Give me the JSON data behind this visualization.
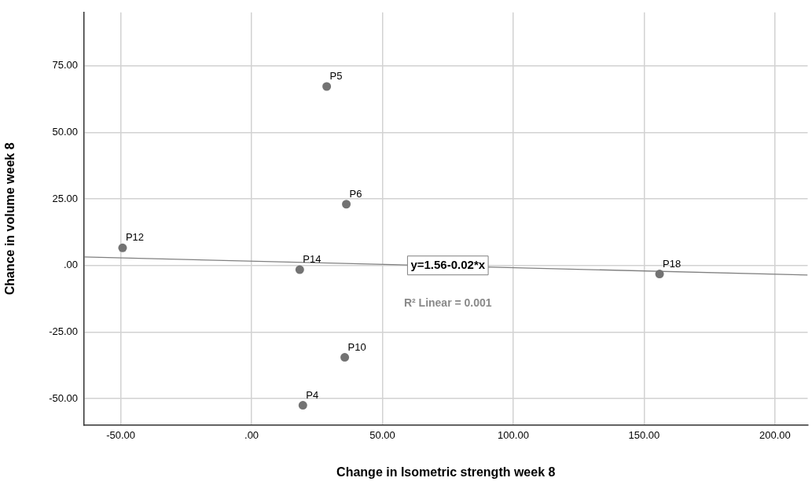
{
  "chart_data": {
    "type": "scatter",
    "xlabel": "Change in Isometric strength week 8",
    "ylabel": "Chance in volume week 8",
    "xlim": [
      -64,
      212.5
    ],
    "ylim": [
      -60,
      95
    ],
    "xticks": [
      {
        "value": -50,
        "label": "-50.00"
      },
      {
        "value": 0,
        "label": ".00"
      },
      {
        "value": 50,
        "label": "50.00"
      },
      {
        "value": 100,
        "label": "100.00"
      },
      {
        "value": 150,
        "label": "150.00"
      },
      {
        "value": 200,
        "label": "200.00"
      }
    ],
    "yticks": [
      {
        "value": -50,
        "label": "-50.00"
      },
      {
        "value": -25,
        "label": "-25.00"
      },
      {
        "value": 0,
        "label": ".00"
      },
      {
        "value": 25,
        "label": "25.00"
      },
      {
        "value": 50,
        "label": "50.00"
      },
      {
        "value": 75,
        "label": "75.00"
      }
    ],
    "grid": true,
    "series": [
      {
        "marker": "circle",
        "color": "#737373",
        "x": [
          28.7,
          36.2,
          -49.3,
          18.4,
          155.9,
          35.6,
          19.6
        ],
        "values": [
          67.2,
          23.0,
          6.6,
          -1.6,
          -3.2,
          -34.5,
          -52.5
        ],
        "value_labels": [
          "P5",
          "P6",
          "P12",
          "P14",
          "P18",
          "P10",
          "P4"
        ]
      },
      {
        "type": "line",
        "color": "#808080",
        "x": [
          -64,
          212.5
        ],
        "values": [
          3.2,
          -3.6
        ],
        "line_style": "solid",
        "marker": "none"
      }
    ],
    "annotations": [
      {
        "text": "y=1.56-0.02*x",
        "x": 75,
        "y": 0
      },
      "R² Linear = 0.001"
    ]
  }
}
